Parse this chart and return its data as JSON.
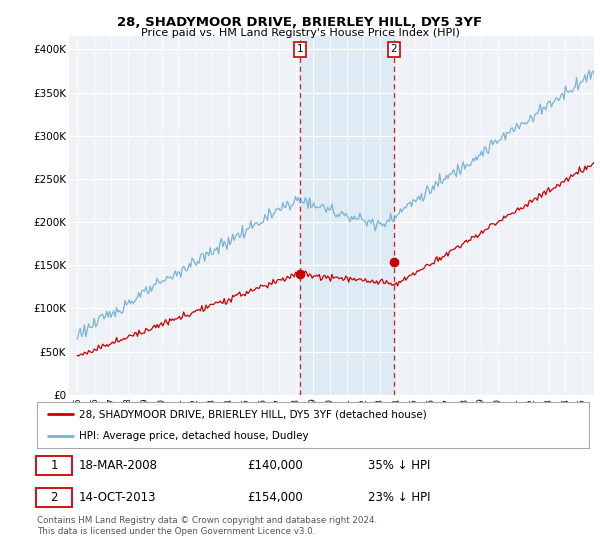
{
  "title": "28, SHADYMOOR DRIVE, BRIERLEY HILL, DY5 3YF",
  "subtitle": "Price paid vs. HM Land Registry's House Price Index (HPI)",
  "ylabel_ticks": [
    "£0",
    "£50K",
    "£100K",
    "£150K",
    "£200K",
    "£250K",
    "£300K",
    "£350K",
    "£400K"
  ],
  "ytick_values": [
    0,
    50000,
    100000,
    150000,
    200000,
    250000,
    300000,
    350000,
    400000
  ],
  "ylim": [
    0,
    415000
  ],
  "xlim_start": 1994.5,
  "xlim_end": 2025.7,
  "hpi_color": "#7ab3d4",
  "hpi_shade_color": "#deeaf4",
  "price_color": "#cc0000",
  "marker1_x": 2008.21,
  "marker1_y": 140000,
  "marker1_label": "1",
  "marker2_x": 2013.79,
  "marker2_y": 154000,
  "marker2_label": "2",
  "legend1_text": "28, SHADYMOOR DRIVE, BRIERLEY HILL, DY5 3YF (detached house)",
  "legend2_text": "HPI: Average price, detached house, Dudley",
  "table_row1": [
    "1",
    "18-MAR-2008",
    "£140,000",
    "35% ↓ HPI"
  ],
  "table_row2": [
    "2",
    "14-OCT-2013",
    "£154,000",
    "23% ↓ HPI"
  ],
  "footnote": "Contains HM Land Registry data © Crown copyright and database right 2024.\nThis data is licensed under the Open Government Licence v3.0.",
  "bg_color": "#ffffff",
  "plot_bg_color": "#eef2f7"
}
